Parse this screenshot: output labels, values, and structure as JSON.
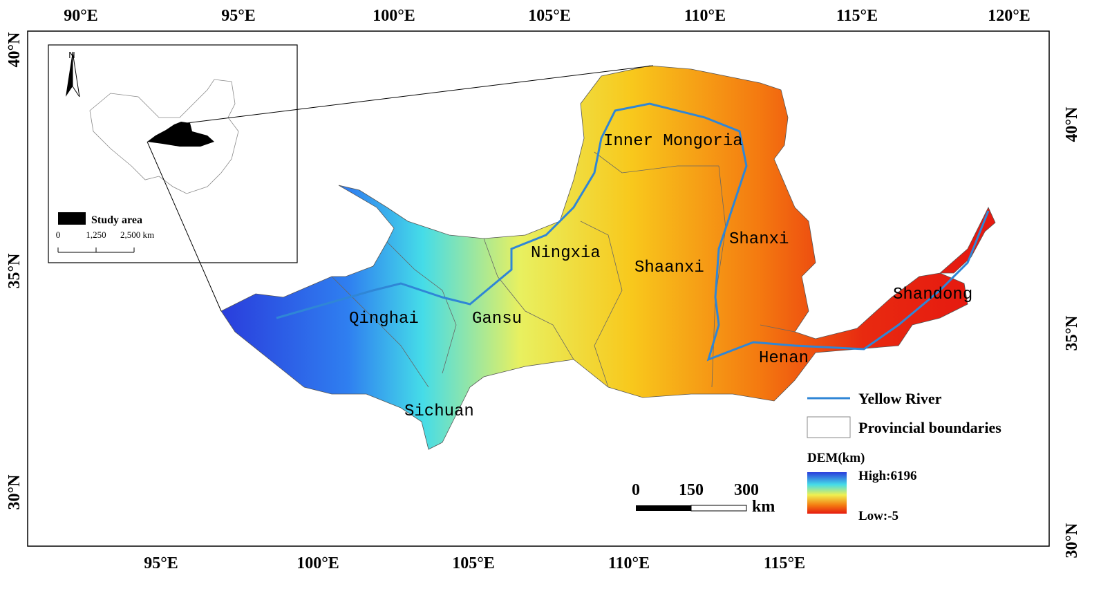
{
  "map": {
    "top_axis": [
      "90°E",
      "95°E",
      "100°E",
      "105°E",
      "110°E",
      "115°E",
      "120°E"
    ],
    "bottom_axis": [
      "95°E",
      "100°E",
      "105°E",
      "110°E",
      "115°E"
    ],
    "left_axis": [
      "40°N",
      "35°N",
      "30°N"
    ],
    "right_axis": [
      "40°N",
      "35°N",
      "30°N"
    ],
    "provinces": [
      "Inner Mongoria",
      "Ningxia",
      "Shanxi",
      "Shaanxi",
      "Shandong",
      "Qinghai",
      "Gansu",
      "Henan",
      "Sichuan"
    ],
    "legend": {
      "river": "Yellow River",
      "boundaries": "Provincial boundaries",
      "dem_title": "DEM(km)",
      "high": "High:6196",
      "low": "Low:-5"
    },
    "scale_bar": {
      "ticks": [
        "0",
        "150",
        "300"
      ],
      "unit": "km"
    },
    "inset": {
      "north": "N",
      "legend": "Study area",
      "scale_ticks": [
        "0",
        "1,250",
        "2,500 km"
      ]
    }
  }
}
